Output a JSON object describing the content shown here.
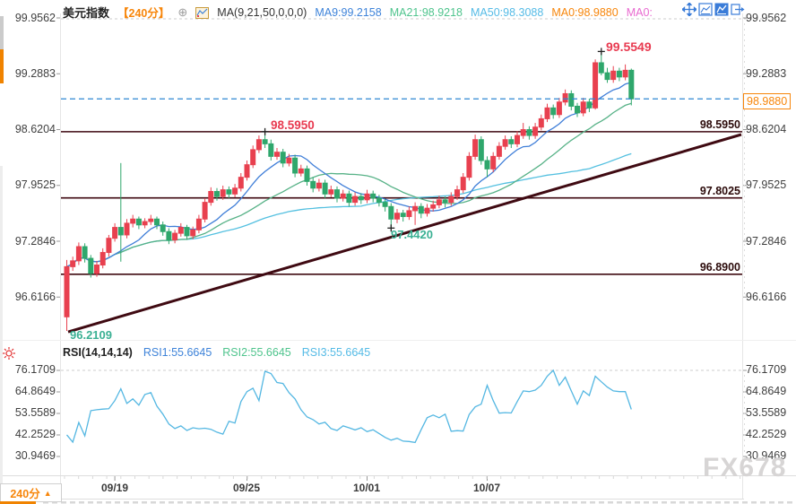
{
  "header": {
    "symbol": "美元指数",
    "period": "【240分】",
    "ma_settings": "MA(9,21,50,0,0,0)",
    "ma9": "MA9:99.2158",
    "ma21": "MA21:98.9218",
    "ma50": "MA50:98.3088",
    "ma0_orange": "MA0:98.9880",
    "ma0_pink": "MA0:"
  },
  "icons": {
    "circle_plus": "⊕",
    "arrow_up": "▲"
  },
  "price_axis": {
    "labels": [
      "99.9562",
      "99.2883",
      "98.6204",
      "97.9525",
      "97.2846",
      "96.6166"
    ]
  },
  "current_price": "98.9880",
  "levels": {
    "r1": "98.5950",
    "mid": "97.8025",
    "s1": "96.8900"
  },
  "annotations": {
    "high": "99.5549",
    "mid_peak": "98.5950",
    "low_dip": "97.4420",
    "start_low": "96.2109"
  },
  "x_axis": {
    "labels": [
      "09/19",
      "09/25",
      "10/01",
      "10/07"
    ]
  },
  "rsi_header": {
    "title": "RSI(14,14,14)",
    "rsi1": "RSI1:55.6645",
    "rsi2": "RSI2:55.6645",
    "rsi3": "RSI3:55.6645"
  },
  "rsi_axis": {
    "labels": [
      "76.1709",
      "64.8649",
      "53.5589",
      "42.2529",
      "30.9469"
    ]
  },
  "bottom_tab": {
    "label": "240分"
  },
  "watermark": "FX678",
  "colors": {
    "up": "#e8404f",
    "down": "#2fa76c",
    "ma9": "#3f7ed8",
    "ma21": "#57b287",
    "ma50": "#54c0e0",
    "rsi": "#54b7e2",
    "trend": "#3f0a12",
    "dashed_line": "#2e86d2",
    "accent_orange": "#f7860b",
    "grid": "#cccccc",
    "tick": "#999999"
  },
  "chart_data": {
    "type": "candlestick",
    "title": "美元指数 240分",
    "price_axis_values": [
      99.9562,
      99.2883,
      98.6204,
      97.9525,
      97.2846,
      96.6166
    ],
    "rsi_axis_values": [
      76.1709,
      64.8649,
      53.5589,
      42.2529,
      30.9469
    ],
    "x_tick_labels": [
      "09/19",
      "09/25",
      "10/01",
      "10/07"
    ],
    "x_tick_indices": [
      8,
      30,
      50,
      70
    ],
    "current_price": 98.988,
    "horizontal_levels": [
      98.595,
      97.8025,
      96.89
    ],
    "trendline_start_price": 96.2109,
    "ma_periods": [
      9,
      21,
      50
    ],
    "markers": [
      {
        "index": 33,
        "pos": "high",
        "value": 98.595
      },
      {
        "index": 54,
        "pos": "low",
        "value": 97.442
      },
      {
        "index": 89,
        "pos": "high",
        "value": 99.5549
      }
    ],
    "candles": [
      [
        96.38,
        97.06,
        96.211,
        96.98
      ],
      [
        96.98,
        97.1,
        96.93,
        97.05
      ],
      [
        97.05,
        97.27,
        97.0,
        97.22
      ],
      [
        97.22,
        97.26,
        97.03,
        97.08
      ],
      [
        97.08,
        97.12,
        96.85,
        96.9
      ],
      [
        96.9,
        97.05,
        96.86,
        97.0
      ],
      [
        97.0,
        97.2,
        96.96,
        97.15
      ],
      [
        97.15,
        97.36,
        97.1,
        97.32
      ],
      [
        97.32,
        97.5,
        97.28,
        97.45
      ],
      [
        97.45,
        98.22,
        97.04,
        97.36
      ],
      [
        97.36,
        97.55,
        97.32,
        97.5
      ],
      [
        97.5,
        97.6,
        97.45,
        97.55
      ],
      [
        97.55,
        97.58,
        97.43,
        97.48
      ],
      [
        97.48,
        97.56,
        97.44,
        97.52
      ],
      [
        97.52,
        97.6,
        97.48,
        97.55
      ],
      [
        97.55,
        97.58,
        97.43,
        97.48
      ],
      [
        97.48,
        97.52,
        97.35,
        97.4
      ],
      [
        97.4,
        97.44,
        97.25,
        97.3
      ],
      [
        97.3,
        97.42,
        97.26,
        97.38
      ],
      [
        97.38,
        97.5,
        97.34,
        97.45
      ],
      [
        97.45,
        97.48,
        97.3,
        97.35
      ],
      [
        97.35,
        97.46,
        97.31,
        97.42
      ],
      [
        97.42,
        97.6,
        97.38,
        97.55
      ],
      [
        97.55,
        97.8,
        97.51,
        97.75
      ],
      [
        97.75,
        97.93,
        97.71,
        97.88
      ],
      [
        97.88,
        97.92,
        97.77,
        97.82
      ],
      [
        97.82,
        97.95,
        97.78,
        97.9
      ],
      [
        97.9,
        97.94,
        97.8,
        97.85
      ],
      [
        97.85,
        97.97,
        97.81,
        97.92
      ],
      [
        97.92,
        98.1,
        97.88,
        98.05
      ],
      [
        98.05,
        98.25,
        98.01,
        98.2
      ],
      [
        98.2,
        98.43,
        98.16,
        98.38
      ],
      [
        98.38,
        98.55,
        98.34,
        98.5
      ],
      [
        98.5,
        98.595,
        98.4,
        98.45
      ],
      [
        98.45,
        98.5,
        98.25,
        98.3
      ],
      [
        98.3,
        98.4,
        98.26,
        98.35
      ],
      [
        98.35,
        98.39,
        98.17,
        98.22
      ],
      [
        98.22,
        98.33,
        98.18,
        98.28
      ],
      [
        98.28,
        98.32,
        98.05,
        98.1
      ],
      [
        98.1,
        98.2,
        98.06,
        98.15
      ],
      [
        98.15,
        98.19,
        97.95,
        98.0
      ],
      [
        98.0,
        98.05,
        97.87,
        97.92
      ],
      [
        97.92,
        98.03,
        97.88,
        97.98
      ],
      [
        97.98,
        98.02,
        97.8,
        97.85
      ],
      [
        97.85,
        97.95,
        97.81,
        97.9
      ],
      [
        97.9,
        97.94,
        97.75,
        97.8
      ],
      [
        97.8,
        97.9,
        97.76,
        97.85
      ],
      [
        97.85,
        97.89,
        97.7,
        97.75
      ],
      [
        97.75,
        97.87,
        97.71,
        97.82
      ],
      [
        97.82,
        97.86,
        97.73,
        97.78
      ],
      [
        97.78,
        97.9,
        97.74,
        97.85
      ],
      [
        97.85,
        97.89,
        97.75,
        97.8
      ],
      [
        97.8,
        97.84,
        97.7,
        97.75
      ],
      [
        97.75,
        97.79,
        97.64,
        97.7
      ],
      [
        97.7,
        97.74,
        97.442,
        97.55
      ],
      [
        97.55,
        97.67,
        97.5,
        97.62
      ],
      [
        97.62,
        97.66,
        97.52,
        97.58
      ],
      [
        97.58,
        97.7,
        97.54,
        97.65
      ],
      [
        97.65,
        97.75,
        97.48,
        97.7
      ],
      [
        97.7,
        97.74,
        97.56,
        97.62
      ],
      [
        97.62,
        97.73,
        97.58,
        97.68
      ],
      [
        97.68,
        97.77,
        97.64,
        97.72
      ],
      [
        97.72,
        97.83,
        97.68,
        97.78
      ],
      [
        97.78,
        97.82,
        97.69,
        97.75
      ],
      [
        97.75,
        97.87,
        97.71,
        97.82
      ],
      [
        97.82,
        97.95,
        97.78,
        97.9
      ],
      [
        97.9,
        98.1,
        97.86,
        98.05
      ],
      [
        98.05,
        98.35,
        98.01,
        98.3
      ],
      [
        98.3,
        98.56,
        98.26,
        98.5
      ],
      [
        98.5,
        98.54,
        98.2,
        98.25
      ],
      [
        98.25,
        98.3,
        98.05,
        98.15
      ],
      [
        98.15,
        98.35,
        98.11,
        98.3
      ],
      [
        98.3,
        98.47,
        98.26,
        98.42
      ],
      [
        98.42,
        98.55,
        98.38,
        98.5
      ],
      [
        98.5,
        98.54,
        98.4,
        98.45
      ],
      [
        98.45,
        98.6,
        98.41,
        98.55
      ],
      [
        98.55,
        98.7,
        98.51,
        98.62
      ],
      [
        98.62,
        98.66,
        98.5,
        98.55
      ],
      [
        98.55,
        98.7,
        98.51,
        98.65
      ],
      [
        98.65,
        98.8,
        98.61,
        98.75
      ],
      [
        98.75,
        98.93,
        98.71,
        98.88
      ],
      [
        98.88,
        98.92,
        98.75,
        98.8
      ],
      [
        98.8,
        99.0,
        98.76,
        98.95
      ],
      [
        98.95,
        99.1,
        98.91,
        99.05
      ],
      [
        99.05,
        99.09,
        98.85,
        98.9
      ],
      [
        98.9,
        98.94,
        98.77,
        98.82
      ],
      [
        98.82,
        99.0,
        98.78,
        98.95
      ],
      [
        98.95,
        98.99,
        98.83,
        98.88
      ],
      [
        98.88,
        99.46,
        98.86,
        99.42
      ],
      [
        99.42,
        99.5549,
        99.27,
        99.3
      ],
      [
        99.3,
        99.36,
        99.18,
        99.22
      ],
      [
        99.22,
        99.38,
        99.18,
        99.32
      ],
      [
        99.32,
        99.36,
        99.2,
        99.25
      ],
      [
        99.25,
        99.4,
        99.21,
        99.33
      ],
      [
        99.33,
        99.35,
        98.91,
        98.988
      ]
    ],
    "rsi": [
      42.3,
      38.5,
      48.8,
      41.8,
      55,
      55.5,
      55.8,
      56,
      60.3,
      66.5,
      58.8,
      61.2,
      57.9,
      63.5,
      64.5,
      57.4,
      53.2,
      48,
      45.6,
      47,
      44.6,
      46,
      45.5,
      45.8,
      45.2,
      43.7,
      42.7,
      49.4,
      48.5,
      59.8,
      65,
      66.8,
      60.3,
      75.7,
      74.5,
      69.8,
      69.3,
      64.5,
      61.2,
      55.5,
      51.7,
      50.3,
      48,
      48.9,
      45.6,
      44.6,
      47,
      46,
      44.9,
      46,
      44,
      45,
      43,
      41,
      39.5,
      40.5,
      39,
      38.8,
      38.3,
      45,
      51.3,
      52.7,
      51.3,
      53.2,
      44.2,
      44.5,
      44.3,
      53,
      57,
      58.4,
      68.3,
      60.3,
      53.7,
      54,
      53.8,
      59.8,
      65.4,
      65,
      65.8,
      68.3,
      73.1,
      76.2,
      68.3,
      72.6,
      65.4,
      58.4,
      65.4,
      63,
      73.1,
      70.2,
      67.4,
      65.4,
      65,
      65,
      55.66
    ]
  }
}
